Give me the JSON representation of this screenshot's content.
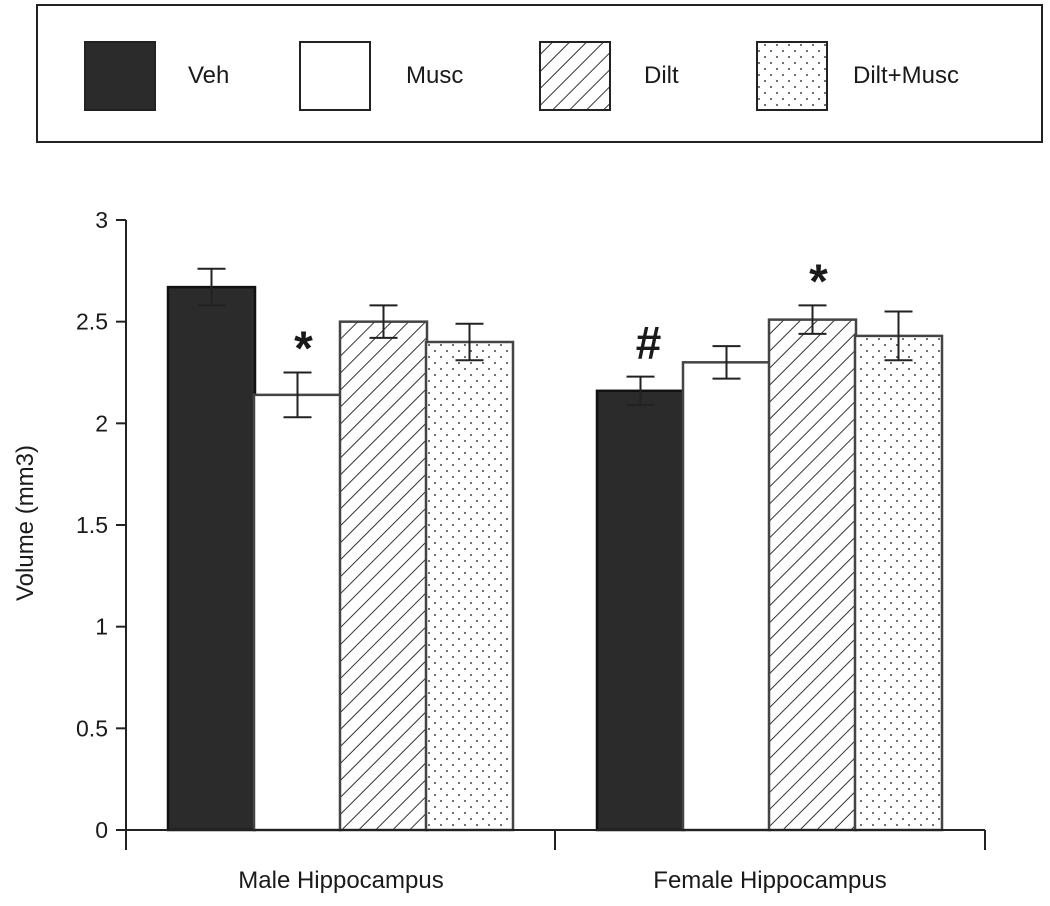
{
  "chart_data": {
    "type": "bar",
    "title": "",
    "xlabel": "",
    "ylabel": "Volume (mm3)",
    "ylim": [
      0,
      3
    ],
    "yticks": [
      "0",
      "0.5",
      "1",
      "1.5",
      "2",
      "2.5",
      "3"
    ],
    "grid": false,
    "legend_position": "top",
    "categories": [
      "Male Hippocampus",
      "Female Hippocampus"
    ],
    "series": [
      {
        "name": "Veh",
        "values": [
          2.67,
          2.16
        ],
        "errors": [
          0.09,
          0.07
        ],
        "fill": "solid",
        "color": "#2b2b2b"
      },
      {
        "name": "Musc",
        "values": [
          2.14,
          2.3
        ],
        "errors": [
          0.11,
          0.08
        ],
        "fill": "white",
        "color": "#ffffff"
      },
      {
        "name": "Dilt",
        "values": [
          2.5,
          2.51
        ],
        "errors": [
          0.08,
          0.07
        ],
        "fill": "hatch",
        "color": "#ffffff"
      },
      {
        "name": "Dilt+Musc",
        "values": [
          2.4,
          2.43
        ],
        "errors": [
          0.09,
          0.12
        ],
        "fill": "dots",
        "color": "#ffffff"
      }
    ],
    "annotations": [
      {
        "text": "*",
        "category": 0,
        "series": 1
      },
      {
        "text": "#",
        "category": 1,
        "series": 0
      },
      {
        "text": "*",
        "category": 1,
        "series": 2
      }
    ]
  }
}
